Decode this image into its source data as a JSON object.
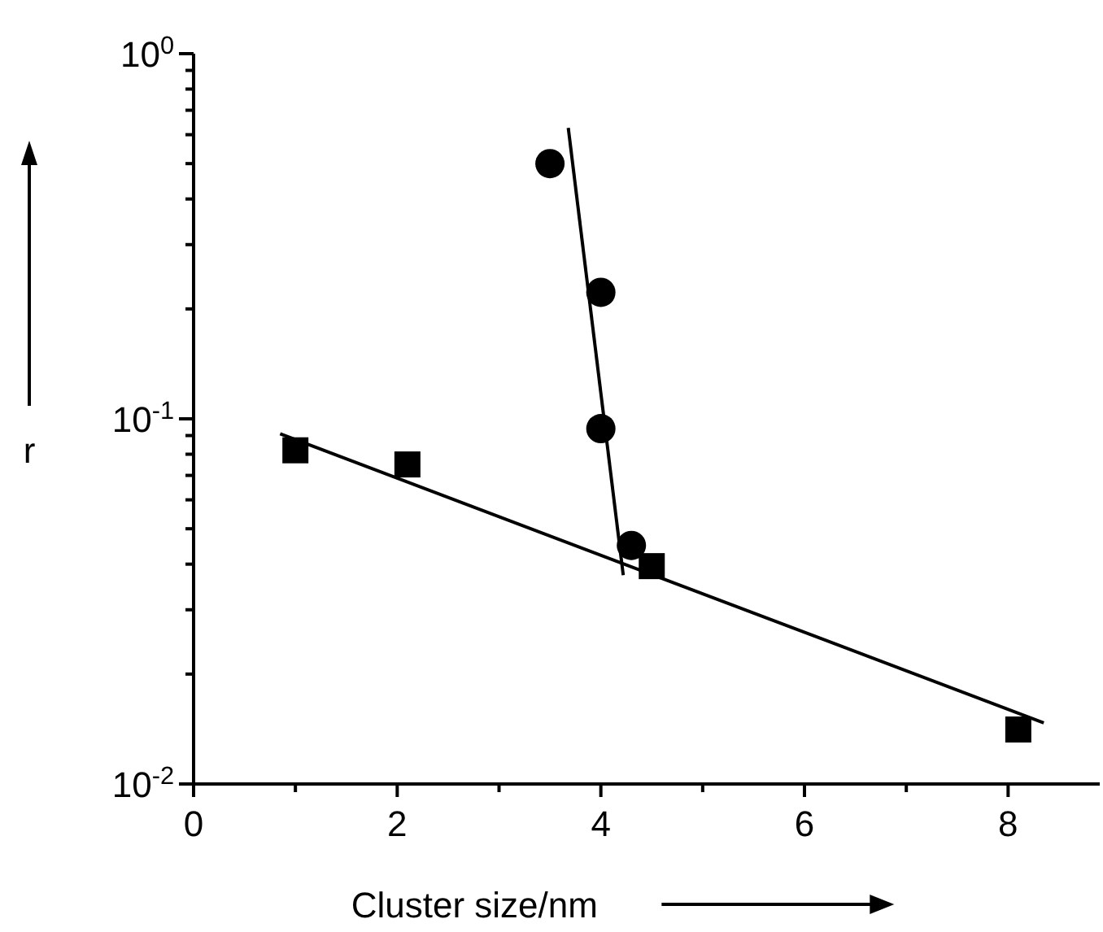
{
  "chart_data": {
    "type": "scatter",
    "xlabel": "Cluster size/nm",
    "ylabel": "r",
    "log": "y",
    "xlim": [
      0,
      8.9
    ],
    "xticks": [
      0,
      {
        "value": 1,
        "label": null
      },
      2,
      {
        "value": 3,
        "label": null
      },
      4,
      {
        "value": 5,
        "label": null
      },
      6,
      {
        "value": 7,
        "label": null
      },
      8
    ],
    "ylim": [
      0.01,
      1
    ],
    "yticks": [
      {
        "value": 0.01,
        "label": "10$^{-2}$"
      },
      {
        "value": 0.02,
        "label": null
      },
      {
        "value": 0.03,
        "label": null
      },
      {
        "value": 0.04,
        "label": null
      },
      {
        "value": 0.05,
        "label": null
      },
      {
        "value": 0.06,
        "label": null
      },
      {
        "value": 0.07,
        "label": null
      },
      {
        "value": 0.08,
        "label": null
      },
      {
        "value": 0.09,
        "label": null
      },
      {
        "value": 0.1,
        "label": "10$^{-1}$"
      },
      {
        "value": 0.2,
        "label": null
      },
      {
        "value": 0.3,
        "label": null
      },
      {
        "value": 0.4,
        "label": null
      },
      {
        "value": 0.5,
        "label": null
      },
      {
        "value": 0.6,
        "label": null
      },
      {
        "value": 0.7,
        "label": null
      },
      {
        "value": 0.8,
        "label": null
      },
      {
        "value": 0.9,
        "label": null
      },
      {
        "value": 1,
        "label": "10$^{0}$"
      }
    ],
    "series": [
      {
        "marker": "square",
        "color": "#000000",
        "x": [
          1.0,
          2.1,
          4.5,
          8.1
        ],
        "values": [
          0.082,
          0.075,
          0.0395,
          0.0141
        ]
      },
      {
        "marker": "circle",
        "color": "#000000",
        "x": [
          3.5,
          4.0,
          4.0,
          4.3
        ],
        "values": [
          0.5,
          0.222,
          0.094,
          0.045
        ]
      },
      {
        "type": "line",
        "color": "#000000",
        "x": [
          0.85,
          8.35
        ],
        "values": [
          0.091,
          0.0147
        ]
      },
      {
        "type": "line",
        "color": "#000000",
        "x": [
          3.68,
          4.22
        ],
        "values": [
          0.626,
          0.0373
        ]
      }
    ]
  }
}
